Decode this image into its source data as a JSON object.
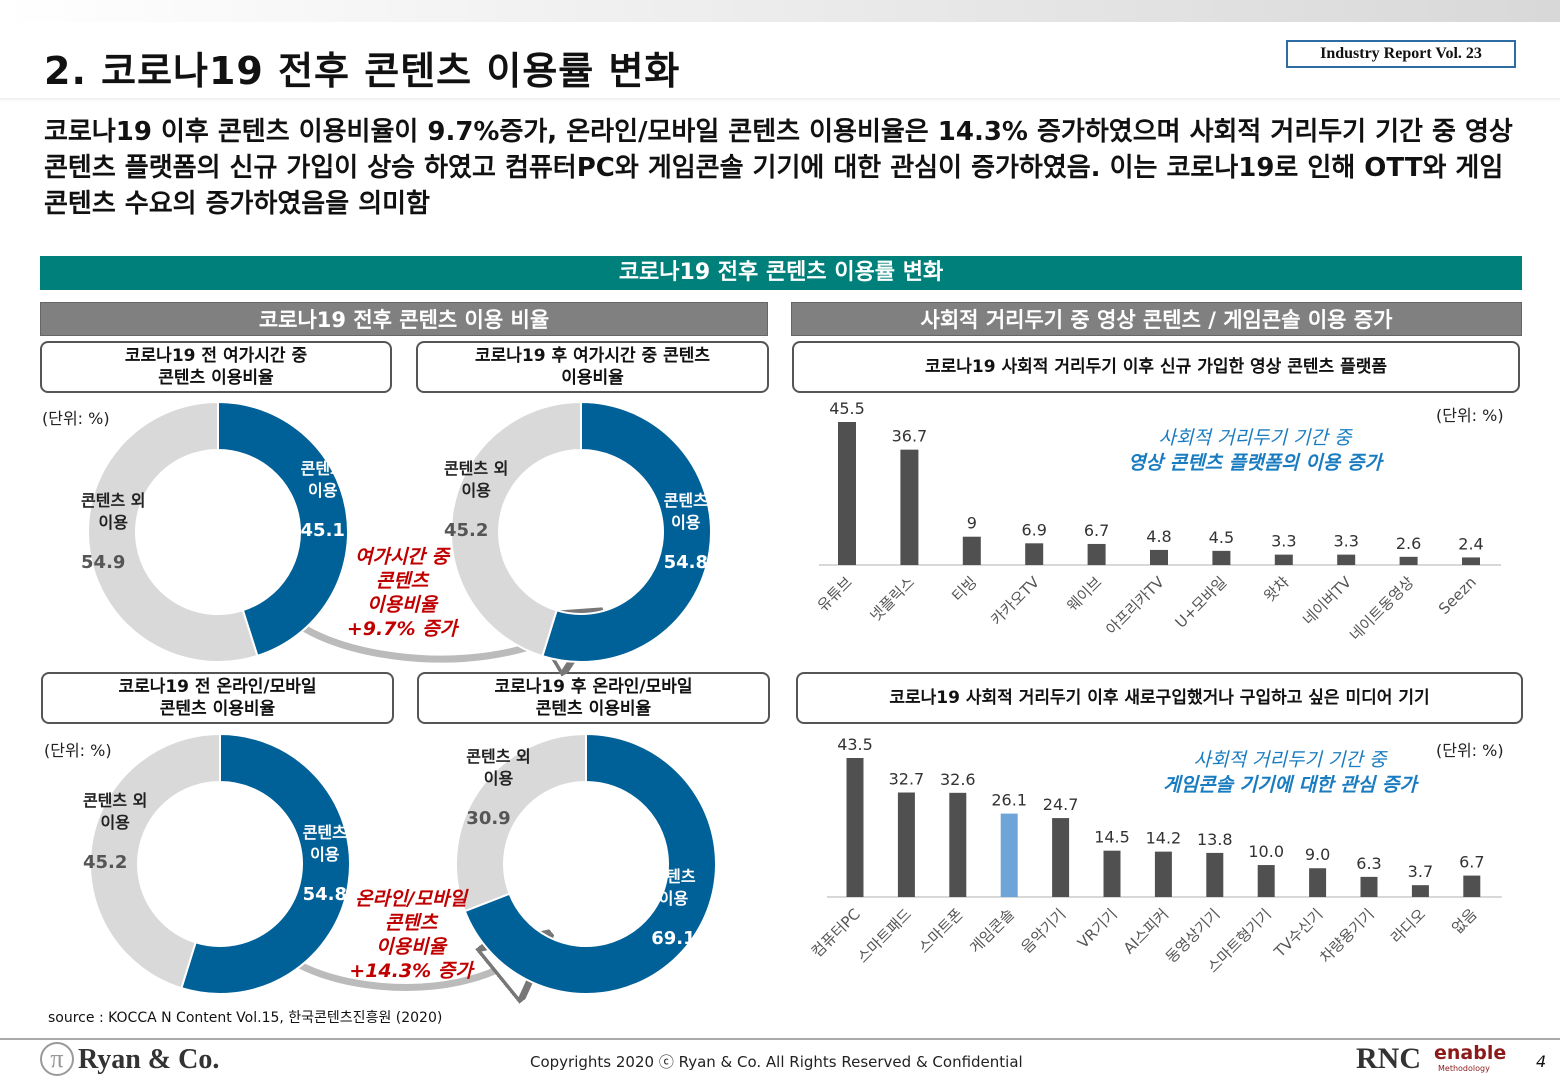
{
  "header": {
    "title": "2. 코로나19 전후 콘텐츠 이용률 변화",
    "report": "Industry Report Vol. 23"
  },
  "summary": "코로나19 이후 콘텐츠 이용비율이 9.7%증가, 온라인/모바일 콘텐츠 이용비율은 14.3% 증가하였으며 사회적 거리두기 기간 중 영상 콘텐츠 플랫폼의 신규 가입이 상승 하였고 컴퓨터PC와 게임콘솔 기기에 대한 관심이 증가하였음. 이는 코로나19로 인해 OTT와 게임 콘텐츠 수요의 증가하였음을 의미함",
  "main_header": "코로나19 전후 콘텐츠 이용률 변화",
  "left": {
    "header": "코로나19 전후 콘텐츠 이용 비율",
    "unit": "(단위: %)",
    "box1": "코로나19 전 여가시간 중\n콘텐츠 이용비율",
    "box2": "코로나19 후 여가시간 중 콘텐츠\n이용비율",
    "box3": "코로나19 전 온라인/모바일\n콘텐츠 이용비율",
    "box4": "코로나19 후 온라인/모바일\n콘텐츠 이용비율",
    "ann1": "여가시간 중\n콘텐츠\n이용비율\n+9.7% 증가",
    "ann2": "온라인/모바일\n콘텐츠\n이용비율\n+14.3% 증가",
    "label_in": "콘텐츠\n이용",
    "label_out": "콘텐츠 외\n이용"
  },
  "right": {
    "header": "사회적 거리두기 중 영상 콘텐츠 / 게임콘솔 이용 증가",
    "unit": "(단위: %)",
    "box1": "코로나19 사회적 거리두기 이후 신규 가입한 영상 콘텐츠 플랫폼",
    "box2": "코로나19 사회적 거리두기 이후 새로구입했거나 구입하고 싶은 미디어 기기",
    "note1a": "사회적 거리두기 기간 중",
    "note1b": "영상 콘텐츠 플랫폼의 이용 증가",
    "note2a": "사회적 거리두기 기간 중",
    "note2b": "게임콘솔 기기에 대한 관심 증가"
  },
  "colors": {
    "content": "#006098",
    "other": "#d9d9d9",
    "bar": "#505050",
    "highlight": "#6ea4d8",
    "teal": "#00807a",
    "annotation": "#c00000",
    "note": "#1a7cc0"
  },
  "chart_data": [
    {
      "type": "pie",
      "title": "코로나19 전 여가시간 중 콘텐츠 이용비율",
      "categories": [
        "콘텐츠 이용",
        "콘텐츠 외 이용"
      ],
      "values": [
        45.1,
        54.9
      ]
    },
    {
      "type": "pie",
      "title": "코로나19 후 여가시간 중 콘텐츠 이용비율",
      "categories": [
        "콘텐츠 이용",
        "콘텐츠 외 이용"
      ],
      "values": [
        54.8,
        45.2
      ]
    },
    {
      "type": "pie",
      "title": "코로나19 전 온라인/모바일 콘텐츠 이용비율",
      "categories": [
        "콘텐츠 이용",
        "콘텐츠 외 이용"
      ],
      "values": [
        54.8,
        45.2
      ]
    },
    {
      "type": "pie",
      "title": "코로나19 후 온라인/모바일 콘텐츠 이용비율",
      "categories": [
        "콘텐츠 이용",
        "콘텐츠 외 이용"
      ],
      "values": [
        69.1,
        30.9
      ]
    },
    {
      "type": "bar",
      "title": "코로나19 사회적 거리두기 이후 신규 가입한 영상 콘텐츠 플랫폼",
      "categories": [
        "유튜브",
        "넷플릭스",
        "티빙",
        "카카오TV",
        "웨이브",
        "아프리카TV",
        "U+모바일",
        "왓챠",
        "네이버TV",
        "네이트동영상",
        "Seezn"
      ],
      "labels": [
        "45.5",
        "36.7",
        "9",
        "6.9",
        "6.7",
        "4.8",
        "4.5",
        "3.3",
        "3.3",
        "2.6",
        "2.4"
      ],
      "values": [
        45.5,
        36.7,
        9,
        6.9,
        6.7,
        4.8,
        4.5,
        3.3,
        3.3,
        2.6,
        2.4
      ],
      "ylim": [
        0,
        45.5
      ]
    },
    {
      "type": "bar",
      "title": "코로나19 사회적 거리두기 이후 새로구입했거나 구입하고 싶은 미디어 기기",
      "categories": [
        "컴퓨터PC",
        "스마트패드",
        "스마트폰",
        "게임콘솔",
        "음악기기",
        "VR기기",
        "AI스피커",
        "동영상기기",
        "스마트형기기",
        "TV수신기",
        "차량용기기",
        "라디오",
        "없음"
      ],
      "labels": [
        "43.5",
        "32.7",
        "32.6",
        "26.1",
        "24.7",
        "14.5",
        "14.2",
        "13.8",
        "10.0",
        "9.0",
        "6.3",
        "3.7",
        "6.7"
      ],
      "values": [
        43.5,
        32.7,
        32.6,
        26.1,
        24.7,
        14.5,
        14.2,
        13.8,
        10.0,
        9.0,
        6.3,
        3.7,
        6.7
      ],
      "highlight": "게임콘솔",
      "ylim": [
        0,
        43.5
      ]
    }
  ],
  "footer": {
    "source": "source : KOCCA N Content Vol.15, 한국콘텐츠진흥원 (2020)",
    "logo": "Ryan & Co.",
    "copyright": "Copyrights 2020 ⓒ Ryan & Co. All Rights Reserved & Confidential",
    "rnc": "RNC",
    "enable": "enable",
    "methodology": "Methodology",
    "page": "4"
  }
}
